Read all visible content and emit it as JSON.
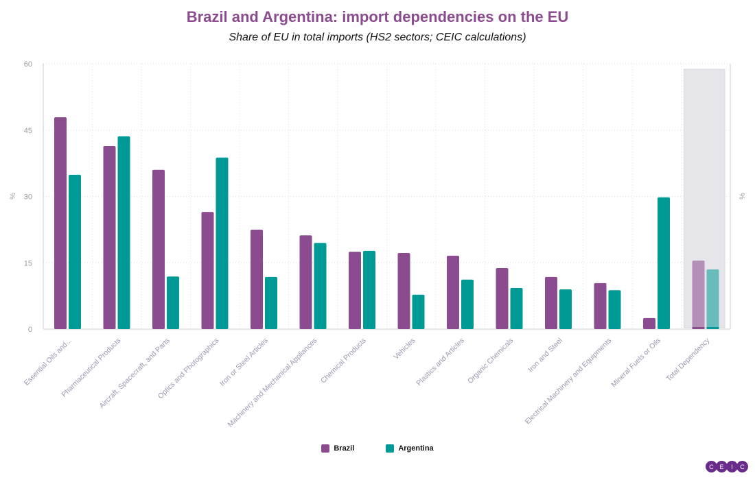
{
  "chart_data": {
    "type": "bar",
    "title": "Brazil and Argentina: import dependencies on the EU",
    "subtitle": "Share of EU in total imports (HS2 sectors; CEIC calculations)",
    "ylabel": "%",
    "ylabel_right": "%",
    "ylim": [
      0,
      60
    ],
    "yticks": [
      "0",
      "15",
      "30",
      "45",
      "60"
    ],
    "grid": true,
    "legend_position": "bottom",
    "categories": [
      "Essential Oils and...",
      "Pharmaceutical Products",
      "Aircraft, Spacecraft, and Parts",
      "Optics and Photographics",
      "Iron or Steel Articles",
      "Machinery and Mechanical Appliances",
      "Chemical Products",
      "Vehicles",
      "Plastics and Articles",
      "Organic Chemicals",
      "Iron and Steel",
      "Electrical Machinery and Equipments",
      "Mineral Fuels or Oils",
      "Total Dependency"
    ],
    "highlighted_category": "Total Dependency",
    "series": [
      {
        "name": "Brazil",
        "color": "#8a4b8f",
        "values": [
          47.9,
          41.4,
          36.0,
          26.5,
          22.5,
          21.2,
          17.5,
          17.2,
          16.6,
          13.8,
          11.8,
          10.4,
          2.5,
          15.5
        ]
      },
      {
        "name": "Argentina",
        "color": "#009a96",
        "values": [
          34.9,
          43.6,
          11.9,
          38.8,
          11.8,
          19.5,
          17.7,
          7.8,
          11.2,
          9.3,
          9.0,
          8.8,
          29.8,
          13.5
        ]
      }
    ]
  },
  "logo": {
    "letters": [
      "C",
      "E",
      "I",
      "C"
    ]
  }
}
